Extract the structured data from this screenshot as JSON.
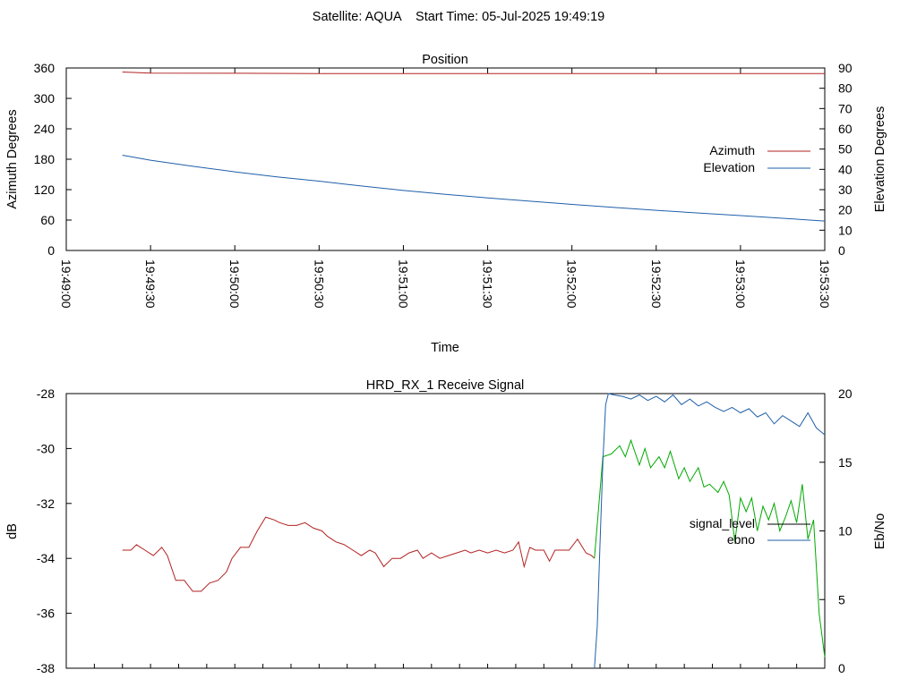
{
  "page_title": "Satellite: AQUA    Start Time: 05-Jul-2025 19:49:19",
  "chart_data": [
    {
      "type": "line",
      "title": "Position",
      "xlabel": "Time",
      "ylabel": "Azimuth Degrees",
      "y2label": "Elevation Degrees",
      "xlim": [
        "19:49:00",
        "19:53:30"
      ],
      "x_ticks": [
        "19:49:00",
        "19:49:30",
        "19:50:00",
        "19:50:30",
        "19:51:00",
        "19:51:30",
        "19:52:00",
        "19:52:30",
        "19:53:00",
        "19:53:30"
      ],
      "ylim": [
        0,
        360
      ],
      "y_ticks": [
        0,
        60,
        120,
        180,
        240,
        300,
        360
      ],
      "y2lim": [
        0,
        90
      ],
      "y2_ticks": [
        0,
        10,
        20,
        30,
        40,
        50,
        60,
        70,
        80,
        90
      ],
      "grid": false,
      "legend_position": "right",
      "series": [
        {
          "name": "Azimuth",
          "axis": "y",
          "color": "#b22222",
          "x": [
            "19:49:20",
            "19:49:30",
            "19:50:00",
            "19:50:30",
            "19:51:00",
            "19:51:30",
            "19:52:00",
            "19:52:30",
            "19:53:00",
            "19:53:30"
          ],
          "values": [
            352,
            350,
            349.5,
            349,
            349,
            349,
            349,
            349,
            349,
            349
          ]
        },
        {
          "name": "Elevation",
          "axis": "y2",
          "color": "#1f5fa8",
          "x": [
            "19:49:20",
            "19:49:30",
            "19:49:45",
            "19:50:00",
            "19:50:15",
            "19:50:30",
            "19:50:45",
            "19:51:00",
            "19:51:15",
            "19:51:30",
            "19:51:45",
            "19:52:00",
            "19:52:15",
            "19:52:30",
            "19:52:45",
            "19:53:00",
            "19:53:15",
            "19:53:30"
          ],
          "values": [
            47,
            44.5,
            41.5,
            38.8,
            36.3,
            34.2,
            31.8,
            29.6,
            27.7,
            25.9,
            24.3,
            22.7,
            21.2,
            19.8,
            18.5,
            17.2,
            15.9,
            14.5
          ]
        }
      ]
    },
    {
      "type": "line",
      "title": "HRD_RX_1 Receive Signal",
      "xlabel": "",
      "ylabel": "dB",
      "y2label": "Eb/No",
      "xlim": [
        0,
        270
      ],
      "ylim": [
        -38,
        -28
      ],
      "y_ticks": [
        -38,
        -36,
        -34,
        -32,
        -30,
        -28
      ],
      "y2lim": [
        0,
        20
      ],
      "y2_ticks": [
        0,
        5,
        10,
        15,
        20
      ],
      "grid": false,
      "legend_position": "right",
      "series": [
        {
          "name": "signal_level",
          "axis": "y",
          "color": "#b22222",
          "after_color": "#00aa00",
          "switch_x": 188,
          "x": [
            20,
            23,
            25,
            28,
            31,
            34,
            36,
            39,
            42,
            45,
            48,
            51,
            54,
            57,
            59,
            62,
            65,
            68,
            71,
            74,
            76,
            79,
            82,
            85,
            88,
            91,
            93,
            96,
            99,
            102,
            105,
            108,
            110,
            113,
            116,
            119,
            122,
            125,
            127,
            130,
            133,
            136,
            139,
            142,
            144,
            147,
            150,
            153,
            156,
            159,
            161,
            163,
            165,
            167,
            170,
            172,
            174,
            176,
            179,
            182,
            185,
            187,
            188,
            191,
            194,
            197,
            199,
            201,
            204,
            206,
            208,
            211,
            213,
            215,
            218,
            220,
            222,
            225,
            227,
            229,
            232,
            234,
            236,
            238,
            240,
            242,
            244,
            246,
            248,
            250,
            252,
            254,
            256,
            258,
            260,
            262,
            264,
            266,
            268,
            270
          ],
          "values": [
            -33.7,
            -33.7,
            -33.5,
            -33.7,
            -33.9,
            -33.6,
            -33.9,
            -34.8,
            -34.8,
            -35.2,
            -35.2,
            -34.9,
            -34.8,
            -34.5,
            -34.0,
            -33.6,
            -33.6,
            -33.0,
            -32.5,
            -32.6,
            -32.7,
            -32.8,
            -32.8,
            -32.7,
            -32.9,
            -33.0,
            -33.2,
            -33.4,
            -33.5,
            -33.7,
            -33.9,
            -33.7,
            -33.8,
            -34.3,
            -34.0,
            -34.0,
            -33.8,
            -33.7,
            -34.0,
            -33.8,
            -34.0,
            -33.9,
            -33.8,
            -33.7,
            -33.8,
            -33.7,
            -33.8,
            -33.7,
            -33.8,
            -33.7,
            -33.4,
            -34.3,
            -33.6,
            -33.7,
            -33.7,
            -34.1,
            -33.7,
            -33.7,
            -33.7,
            -33.3,
            -33.8,
            -33.9,
            -34.0,
            -30.3,
            -30.2,
            -29.9,
            -30.3,
            -29.7,
            -30.6,
            -30.0,
            -30.7,
            -30.3,
            -30.7,
            -30.1,
            -31.1,
            -30.7,
            -31.2,
            -30.7,
            -31.4,
            -31.3,
            -31.6,
            -31.2,
            -31.7,
            -33.4,
            -31.8,
            -32.3,
            -31.8,
            -33.0,
            -32.1,
            -32.6,
            -32.0,
            -33.0,
            -32.5,
            -31.9,
            -32.7,
            -31.3,
            -33.3,
            -32.6,
            -36.0,
            -37.6
          ]
        },
        {
          "name": "ebno",
          "axis": "y2",
          "color": "#1f5fa8",
          "x": [
            188,
            189,
            190,
            191,
            192,
            193,
            195,
            198,
            201,
            204,
            207,
            210,
            213,
            216,
            219,
            222,
            225,
            228,
            231,
            234,
            237,
            240,
            243,
            246,
            249,
            252,
            255,
            258,
            261,
            264,
            267,
            270
          ],
          "values": [
            0,
            3,
            9,
            15,
            19.2,
            20,
            19.9,
            19.8,
            19.6,
            19.9,
            19.5,
            19.8,
            19.4,
            19.9,
            19.2,
            19.6,
            19.1,
            19.4,
            19.0,
            18.7,
            19.0,
            18.6,
            18.9,
            18.3,
            18.6,
            17.8,
            18.4,
            18.0,
            17.6,
            18.6,
            17.5,
            17.0
          ]
        }
      ]
    }
  ]
}
